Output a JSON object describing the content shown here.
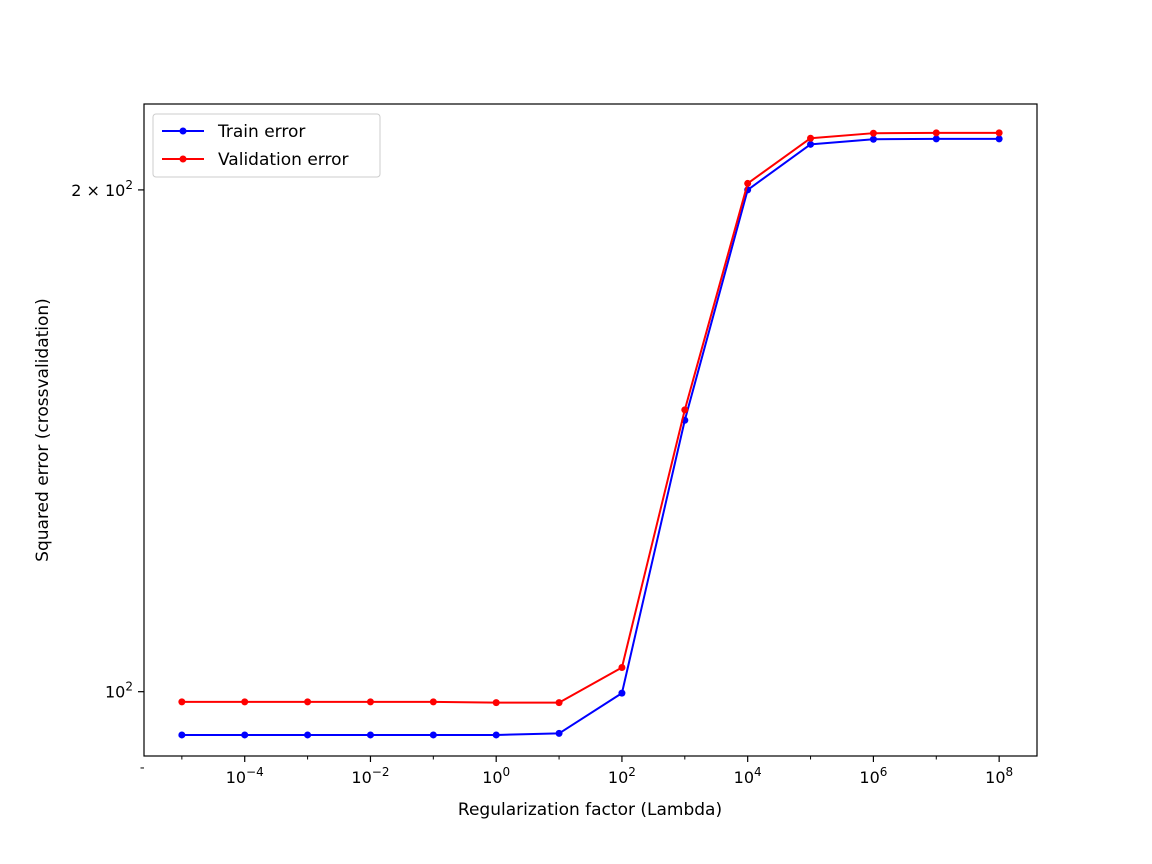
{
  "chart_data": {
    "type": "line",
    "title": "",
    "xlabel": "Regularization factor (Lambda)",
    "ylabel": "Squared error (crossvalidation)",
    "x_scale": "log",
    "y_scale": "log",
    "x": [
      1e-05,
      0.0001,
      0.001,
      0.01,
      0.1,
      1,
      10,
      100,
      1000,
      10000,
      100000,
      1000000,
      10000000,
      100000000
    ],
    "xlim": [
      2.5e-06,
      400000000
    ],
    "ylim": [
      91.5,
      225.2
    ],
    "x_ticks": [
      {
        "value": 0.0001,
        "base": "10",
        "exp": "−4"
      },
      {
        "value": 0.01,
        "base": "10",
        "exp": "−2"
      },
      {
        "value": 1,
        "base": "10",
        "exp": "0"
      },
      {
        "value": 100,
        "base": "10",
        "exp": "2"
      },
      {
        "value": 10000,
        "base": "10",
        "exp": "4"
      },
      {
        "value": 1000000,
        "base": "10",
        "exp": "6"
      },
      {
        "value": 100000000,
        "base": "10",
        "exp": "8"
      }
    ],
    "y_ticks": [
      {
        "value": 100,
        "prefix": "",
        "base": "10",
        "exp": "2"
      },
      {
        "value": 200,
        "prefix": "2 × ",
        "base": "10",
        "exp": "2"
      }
    ],
    "y_minor_ticks": [
      90
    ],
    "grid": false,
    "legend_position": "top-left",
    "series": [
      {
        "name": "Train error",
        "color": "#0000ff",
        "values": [
          94.2,
          94.2,
          94.2,
          94.2,
          94.2,
          94.2,
          94.4,
          99.8,
          145.5,
          200.0,
          213.0,
          214.5,
          214.6,
          214.6
        ]
      },
      {
        "name": "Validation error",
        "color": "#ff0000",
        "values": [
          98.6,
          98.6,
          98.6,
          98.6,
          98.6,
          98.5,
          98.5,
          103.4,
          147.6,
          201.8,
          214.8,
          216.3,
          216.4,
          216.4
        ]
      }
    ]
  }
}
